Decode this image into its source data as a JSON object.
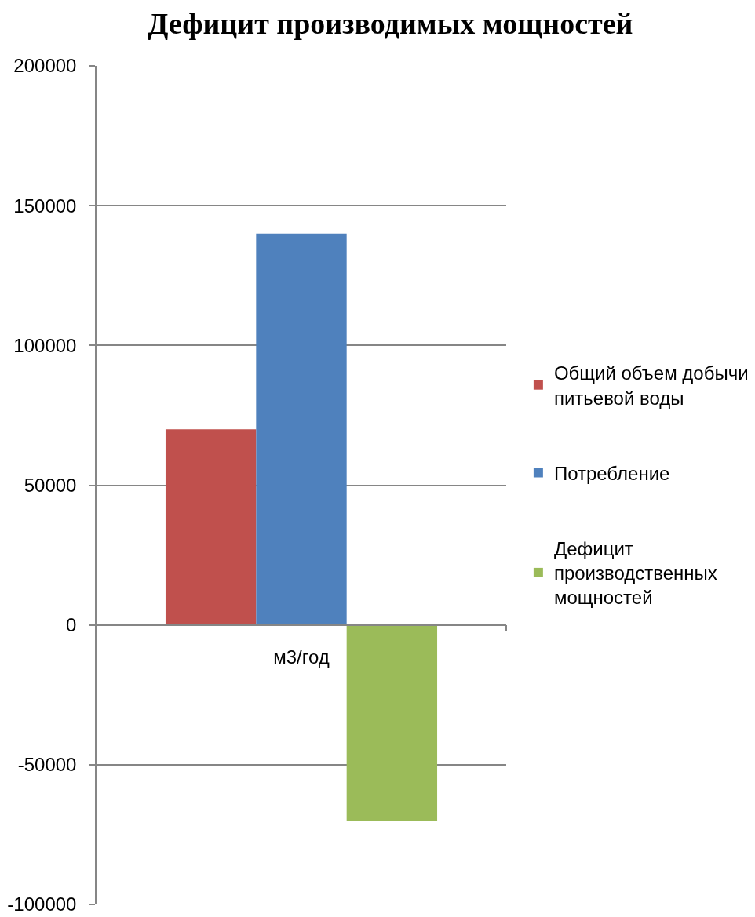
{
  "chart_data": {
    "type": "bar",
    "title": "Дефицит производимых мощностей",
    "categories": [
      "м3/год"
    ],
    "series": [
      {
        "name": "Общий объем добычи питьевой воды",
        "color": "#c0504d",
        "values": [
          70000
        ]
      },
      {
        "name": "Потребление",
        "color": "#4f81bd",
        "values": [
          140000
        ]
      },
      {
        "name": "Дефицит производственных мощностей",
        "color": "#9bbb59",
        "values": [
          -70000
        ]
      }
    ],
    "ylim": [
      -100000,
      200000
    ],
    "yticks": [
      -100000,
      -50000,
      0,
      50000,
      100000,
      150000,
      200000
    ],
    "grid": "y",
    "legend": "right"
  }
}
